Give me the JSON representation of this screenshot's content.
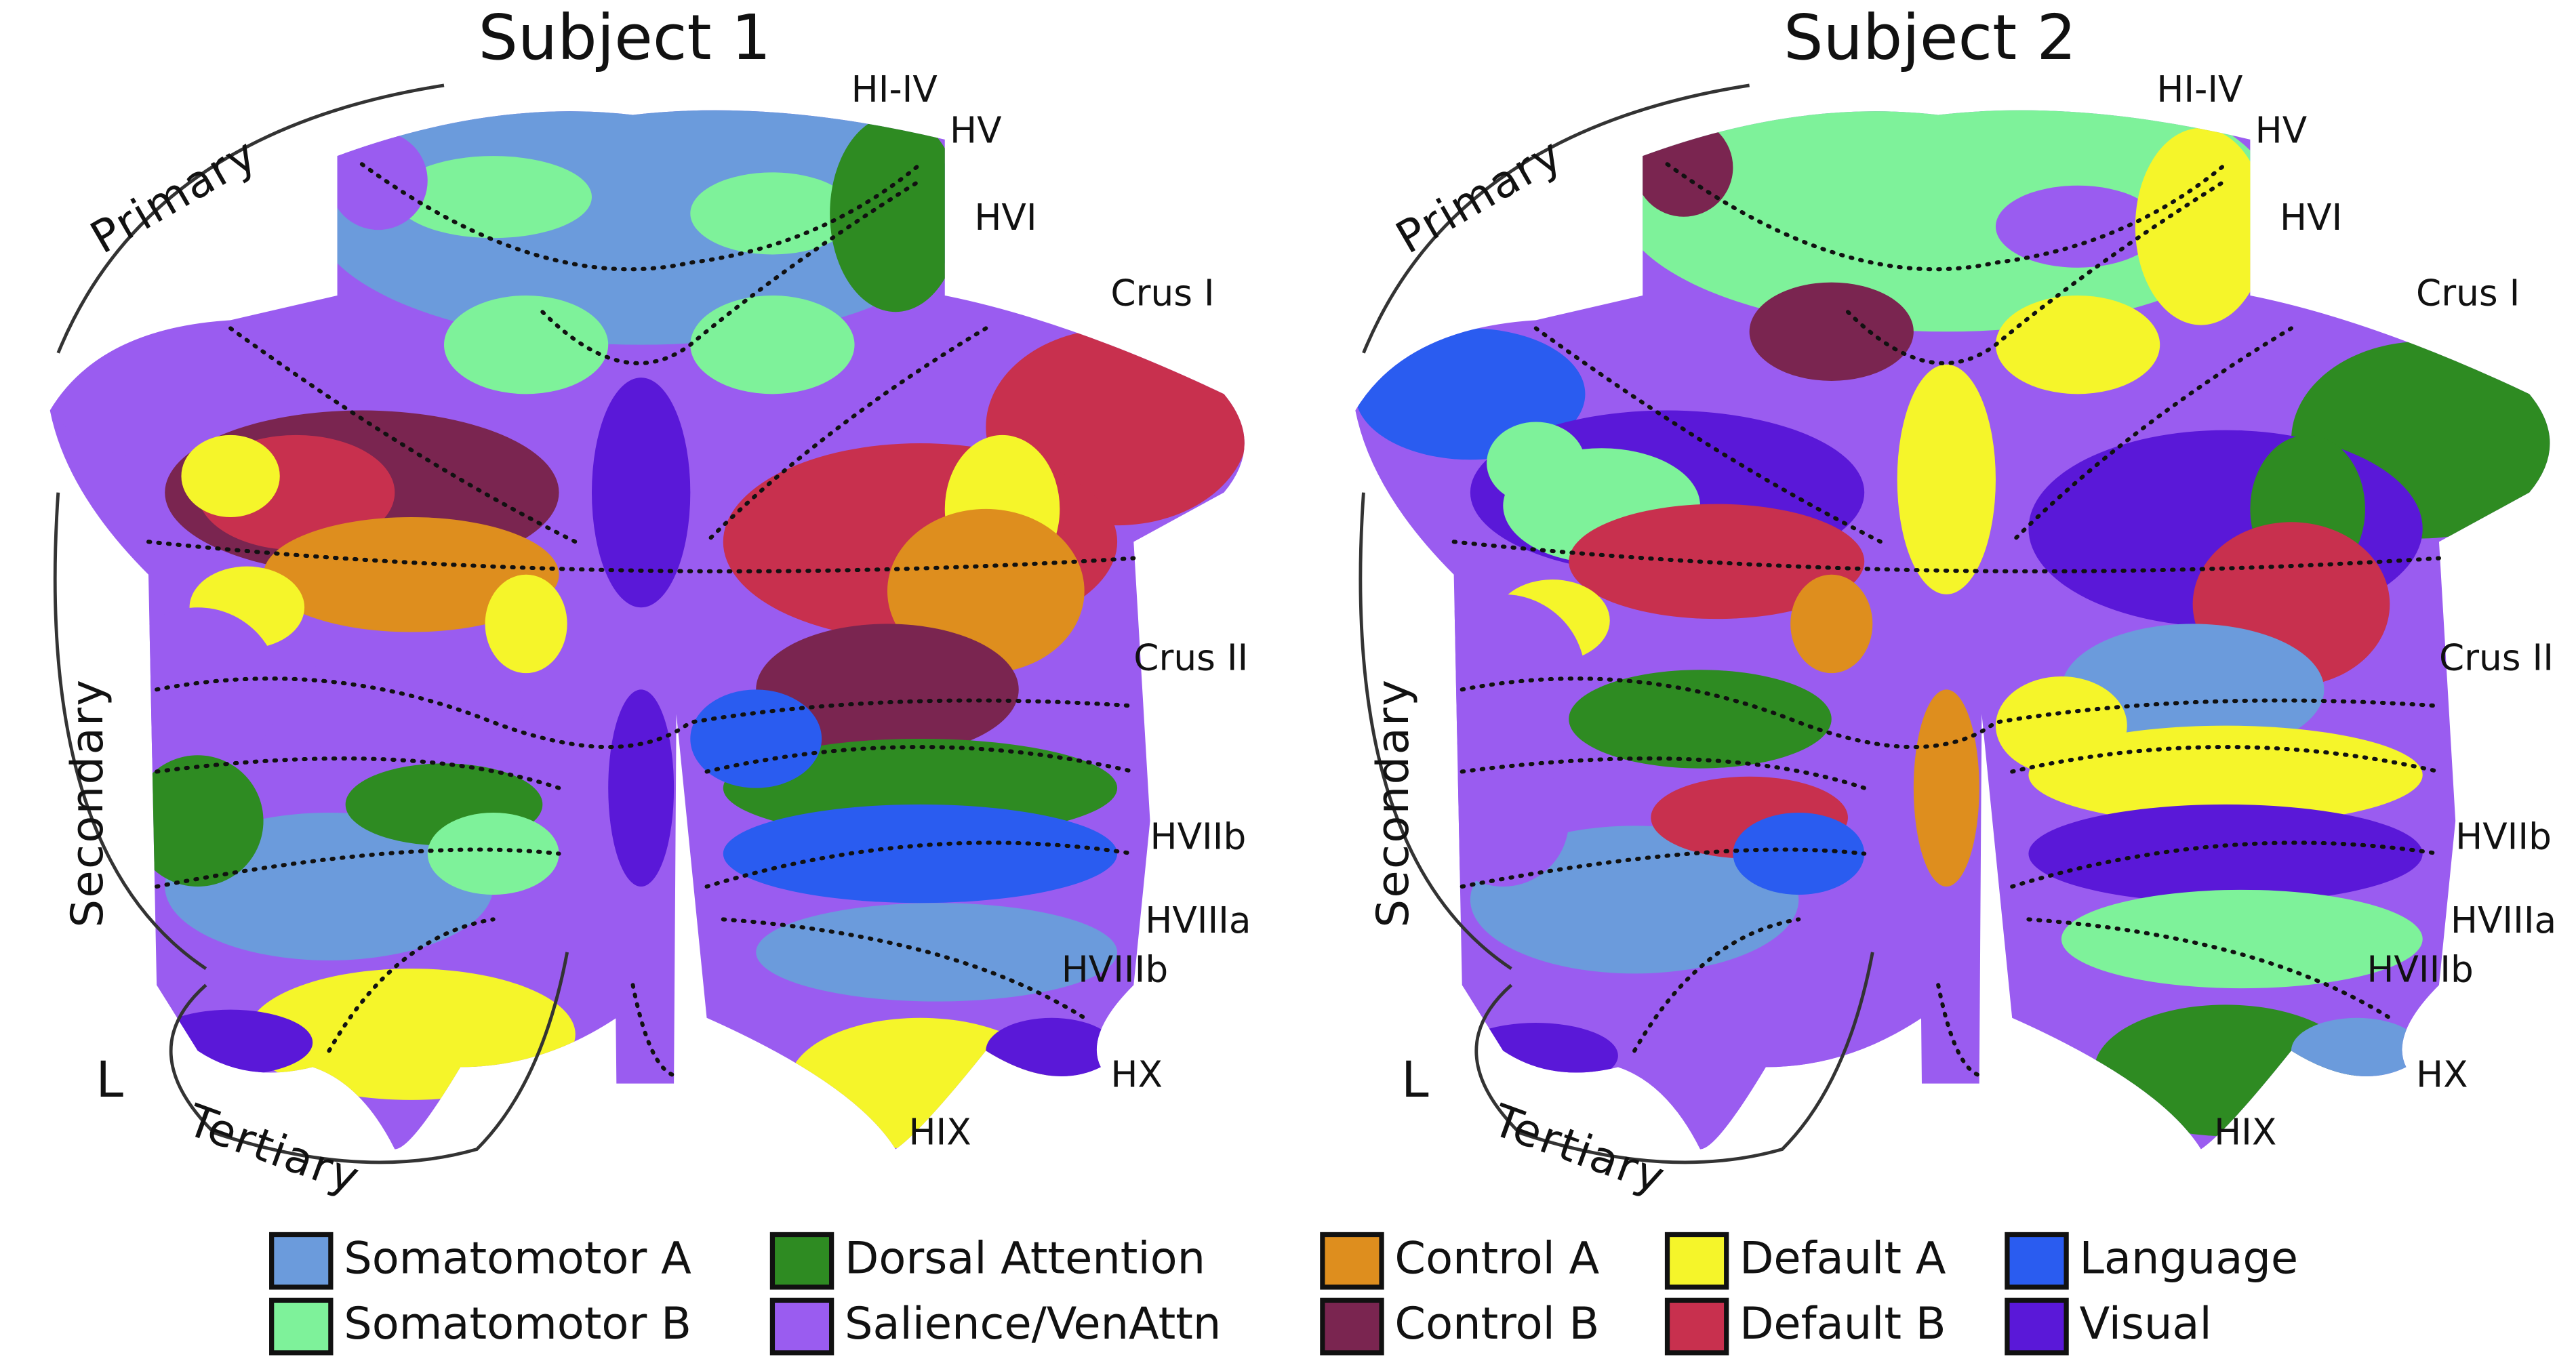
{
  "panels": [
    {
      "title": "Subject 1",
      "side_label": "L"
    },
    {
      "title": "Subject 2",
      "side_label": "L"
    }
  ],
  "lobule_labels": [
    "HI-IV",
    "HV",
    "HVI",
    "Crus I",
    "Crus II",
    "HVIIb",
    "HVIIIa",
    "HVIIIb",
    "HX",
    "HIX"
  ],
  "gradient_labels": [
    "Primary",
    "Secondary",
    "Tertiary"
  ],
  "legend": [
    {
      "name": "Somatomotor A",
      "color": "#6b9bdc"
    },
    {
      "name": "Somatomotor B",
      "color": "#7ef29a"
    },
    {
      "name": "Dorsal Attention",
      "color": "#2e8b22"
    },
    {
      "name": "Salience/VenAttn",
      "color": "#9a5cf0"
    },
    {
      "name": "Control A",
      "color": "#de8e1e"
    },
    {
      "name": "Control B",
      "color": "#7a2550"
    },
    {
      "name": "Default A",
      "color": "#f5f52a"
    },
    {
      "name": "Default B",
      "color": "#c8304e"
    },
    {
      "name": "Language",
      "color": "#2a5cf0"
    },
    {
      "name": "Visual",
      "color": "#5a18d8"
    }
  ]
}
